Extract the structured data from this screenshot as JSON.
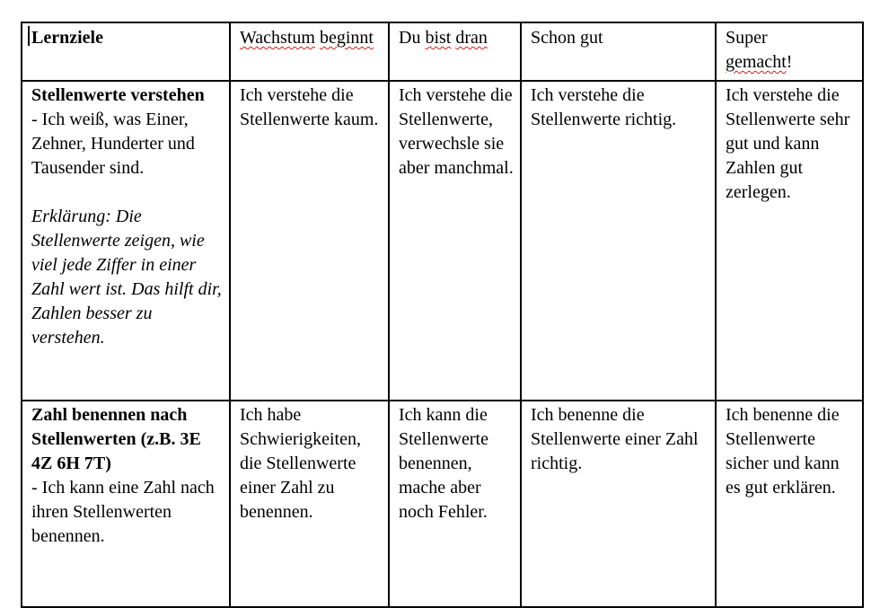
{
  "table": {
    "headers": {
      "goals": "Lernziele",
      "level1_a": "Wachstum",
      "level1_b": "beginnt",
      "level2_a": "Du",
      "level2_b": "bist",
      "level2_c": "dran",
      "level3": "Schon gut",
      "level4_a": "Super",
      "level4_b": "gemacht",
      "level4_c": "!"
    },
    "rows": [
      {
        "goal_title": "Stellenwerte verstehen",
        "goal_desc": " - Ich weiß, was Einer, Zehner, Hunderter und Tausender sind.",
        "goal_note": " Erklärung: Die Stellenwerte zeigen, wie viel jede Ziffer in einer Zahl wert ist. Das hilft dir, Zahlen besser zu verstehen.",
        "level1": "Ich verstehe die Stellenwerte kaum.",
        "level2": "Ich verstehe die Stellenwerte, verwechsle sie aber manchmal.",
        "level3": "Ich verstehe die Stellenwerte richtig.",
        "level4": "Ich verstehe die Stellenwerte sehr gut und kann Zahlen gut zerlegen."
      },
      {
        "goal_title": "Zahl benennen nach Stellenwerten (z.B. 3E 4Z 6H 7T)",
        "goal_desc": " - Ich kann eine Zahl nach ihren Stellenwerten benennen.",
        "level1": "Ich habe Schwierigkeiten, die Stellenwerte einer Zahl zu benennen.",
        "level2": "Ich kann die Stellenwerte benennen, mache aber noch Fehler.",
        "level3": "Ich benenne die Stellenwerte einer Zahl richtig.",
        "level4": "Ich benenne die Stellenwerte sicher und kann es gut erklären."
      }
    ]
  },
  "spellcheck_color": "#d0201b"
}
